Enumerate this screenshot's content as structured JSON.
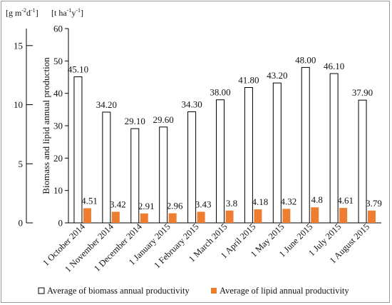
{
  "chart_data": {
    "type": "bar",
    "xlabel": "",
    "ylabel": "Biomass and lipid annual production",
    "ylim": [
      0,
      60
    ],
    "yticks": [
      "0",
      "10",
      "20",
      "30",
      "40",
      "50",
      "60"
    ],
    "secondary_axis": {
      "unit": "[g m-2d-1]",
      "ylim": [
        0,
        16.44
      ],
      "ticks": [
        "0",
        "5",
        "10",
        "15"
      ]
    },
    "primary_unit": "[t ha-1y-1]",
    "categories": [
      "1 October 2014",
      "1 November 2014",
      "1 December 2014",
      "1 January 2015",
      "1 February 2015",
      "1 March 2015",
      "1 April 2015",
      "1 May 2015",
      "1 June 2015",
      "1 July 2015",
      "1 August 2015"
    ],
    "series": [
      {
        "name": "Average of biomass annual productivity",
        "values": [
          45.1,
          34.2,
          29.1,
          29.6,
          34.3,
          38.0,
          41.8,
          43.2,
          48.0,
          46.1,
          37.9
        ],
        "labels": [
          "45.10",
          "34.20",
          "29.10",
          "29.60",
          "34.30",
          "38.00",
          "41.80",
          "43.20",
          "48.00",
          "46.10",
          "37.90"
        ],
        "color": "#ffffff",
        "stroke": "#000000"
      },
      {
        "name": "Average of lipid annual productivity",
        "values": [
          4.51,
          3.42,
          2.91,
          2.96,
          3.43,
          3.8,
          4.18,
          4.32,
          4.8,
          4.61,
          3.79
        ],
        "labels": [
          "4.51",
          "3.42",
          "2.91",
          "2.96",
          "3.43",
          "3.8",
          "4.18",
          "4.32",
          "4.8",
          "4.61",
          "3.79"
        ],
        "color": "#ed7d31"
      }
    ],
    "legend": "bottom",
    "grid": false
  }
}
